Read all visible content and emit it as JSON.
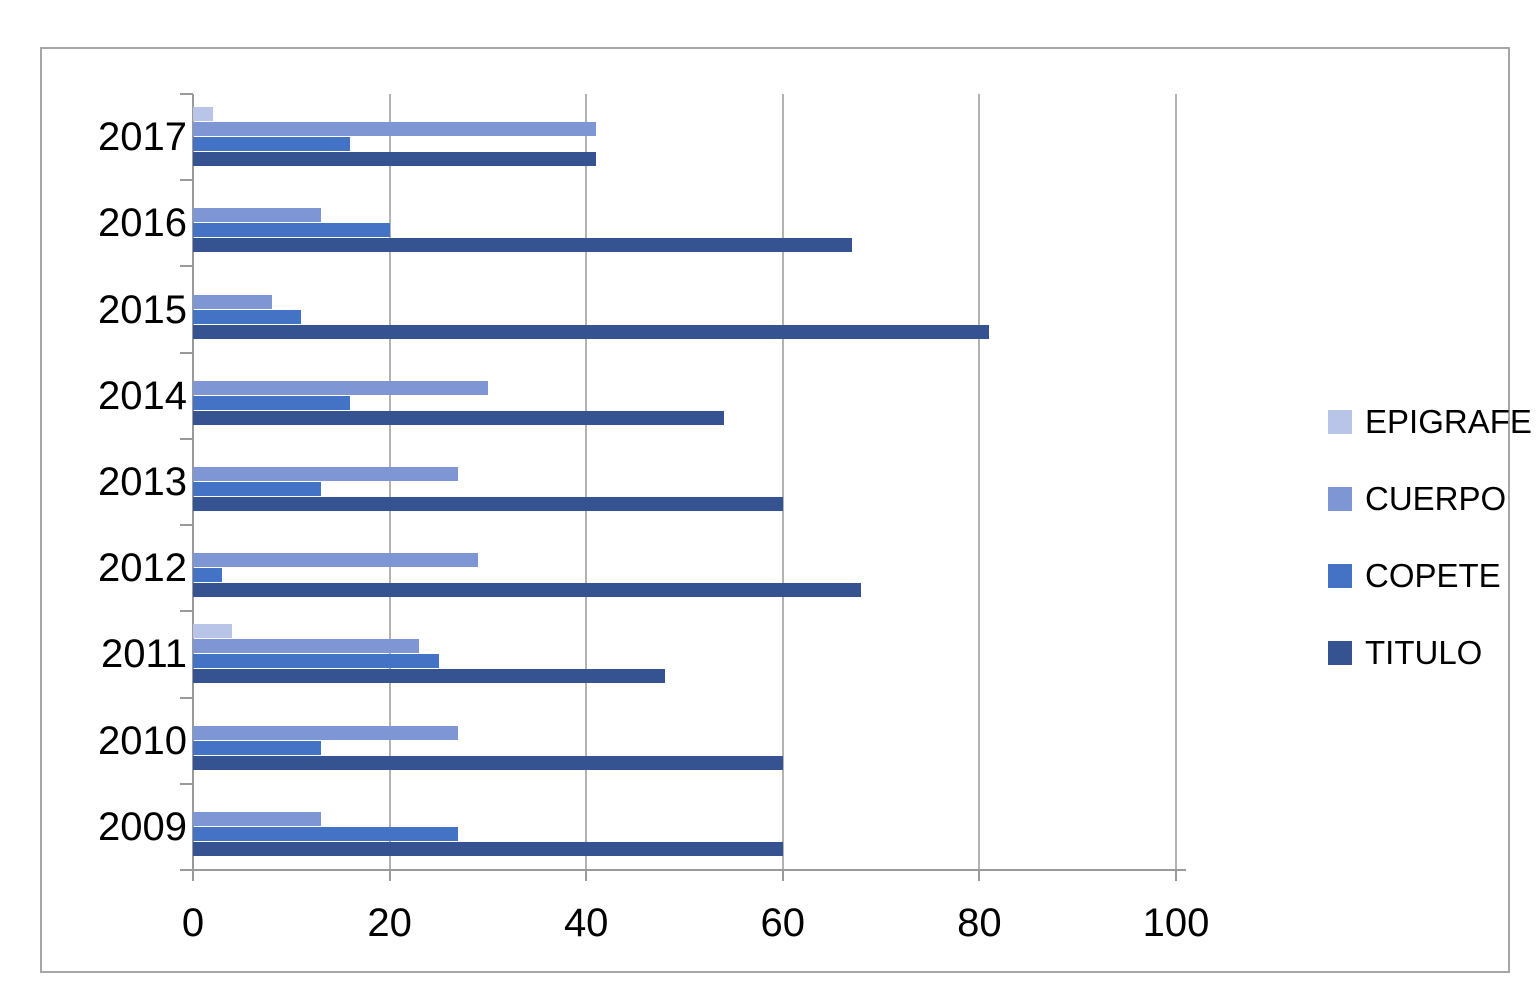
{
  "chart_data": {
    "type": "bar",
    "orientation": "horizontal",
    "title": "",
    "xlabel": "",
    "ylabel": "",
    "xlim": [
      0,
      100
    ],
    "x_ticks": [
      0,
      20,
      40,
      60,
      80,
      100
    ],
    "x_tick_labels": [
      "0",
      "20",
      "40",
      "60",
      "80",
      "100"
    ],
    "grid": true,
    "legend_position": "right",
    "categories": [
      "2017",
      "2016",
      "2015",
      "2014",
      "2013",
      "2012",
      "2011",
      "2010",
      "2009"
    ],
    "series": [
      {
        "name": "EPIGRAFE",
        "color": "#b8c4e8",
        "values": [
          2,
          0,
          0,
          0,
          0,
          0,
          4,
          0,
          0
        ]
      },
      {
        "name": "CUERPO",
        "color": "#7e96d3",
        "values": [
          41,
          13,
          8,
          30,
          27,
          29,
          23,
          27,
          13
        ]
      },
      {
        "name": "COPETE",
        "color": "#4472c4",
        "values": [
          16,
          20,
          11,
          16,
          13,
          3,
          25,
          13,
          27
        ]
      },
      {
        "name": "TITULO",
        "color": "#345390",
        "values": [
          41,
          67,
          81,
          54,
          60,
          68,
          48,
          60,
          60
        ]
      }
    ],
    "legend_items": [
      "EPIGRAFE",
      "CUERPO",
      "COPETE",
      "TITULO"
    ]
  },
  "colors": {
    "gridline": "#b3b3b3",
    "axis": "#9a9a9a",
    "frame_border": "#a6a6a6",
    "background": "#ffffff"
  }
}
